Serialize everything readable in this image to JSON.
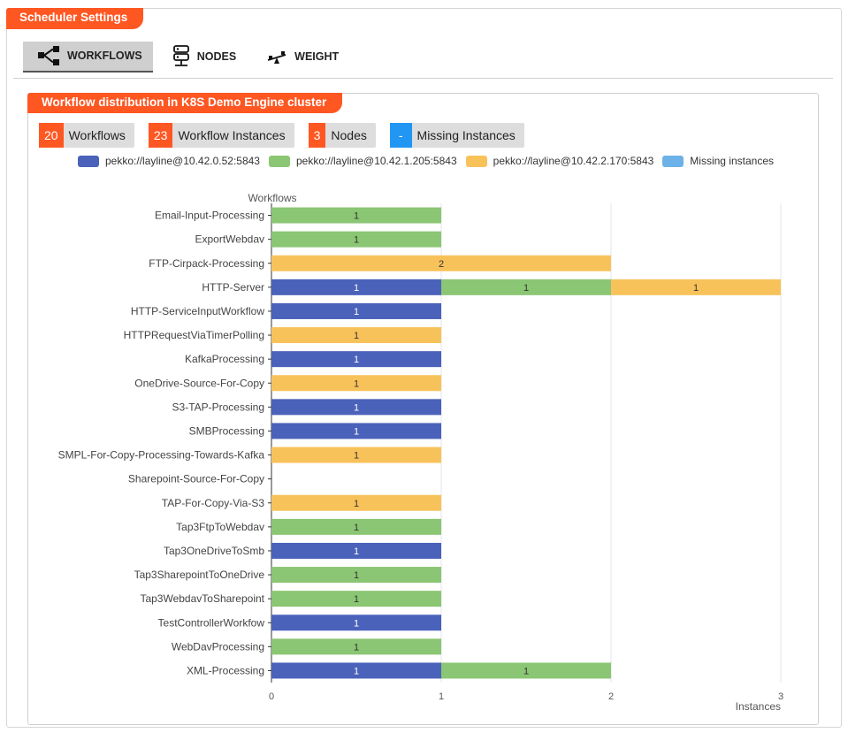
{
  "header": {
    "title": "Scheduler Settings"
  },
  "tabs": [
    {
      "label": "WORKFLOWS",
      "icon": "workflow-share-icon",
      "active": true
    },
    {
      "label": "NODES",
      "icon": "server-nodes-icon",
      "active": false
    },
    {
      "label": "WEIGHT",
      "icon": "weight-scale-icon",
      "active": false
    }
  ],
  "panel": {
    "title": "Workflow distribution in K8S Demo Engine cluster"
  },
  "stats": [
    {
      "value": "20",
      "label": "Workflows",
      "color": "#ff5722"
    },
    {
      "value": "23",
      "label": "Workflow Instances",
      "color": "#ff5722"
    },
    {
      "value": "3",
      "label": "Nodes",
      "color": "#ff5722"
    },
    {
      "value": "-",
      "label": "Missing Instances",
      "color": "#2196f3"
    }
  ],
  "legend": [
    {
      "label": "pekko://layline@10.42.0.52:5843",
      "color": "#4a62ba"
    },
    {
      "label": "pekko://layline@10.42.1.205:5843",
      "color": "#8ac673"
    },
    {
      "label": "pekko://layline@10.42.2.170:5843",
      "color": "#f8c25b"
    },
    {
      "label": "Missing instances",
      "color": "#6cb2e8"
    }
  ],
  "chart_data": {
    "type": "bar",
    "orientation": "horizontal",
    "stacked": true,
    "ylabel": "Workflows",
    "xlabel": "Instances",
    "xlim": [
      0,
      3
    ],
    "xticks": [
      0,
      1,
      2,
      3
    ],
    "grid": true,
    "categories": [
      "Email-Input-Processing",
      "ExportWebdav",
      "FTP-Cirpack-Processing",
      "HTTP-Server",
      "HTTP-ServiceInputWorkflow",
      "HTTPRequestViaTimerPolling",
      "KafkaProcessing",
      "OneDrive-Source-For-Copy",
      "S3-TAP-Processing",
      "SMBProcessing",
      "SMPL-For-Copy-Processing-Towards-Kafka",
      "Sharepoint-Source-For-Copy",
      "TAP-For-Copy-Via-S3",
      "Tap3FtpToWebdav",
      "Tap3OneDriveToSmb",
      "Tap3SharepointToOneDrive",
      "Tap3WebdavToSharepoint",
      "TestControllerWorkfow",
      "WebDavProcessing",
      "XML-Processing"
    ],
    "series": [
      {
        "name": "pekko://layline@10.42.0.52:5843",
        "color": "#4a62ba",
        "values": [
          0,
          0,
          0,
          1,
          1,
          0,
          1,
          0,
          1,
          1,
          0,
          0,
          0,
          0,
          1,
          0,
          0,
          1,
          0,
          1
        ]
      },
      {
        "name": "pekko://layline@10.42.1.205:5843",
        "color": "#8ac673",
        "values": [
          1,
          1,
          0,
          1,
          0,
          0,
          0,
          0,
          0,
          0,
          0,
          0,
          0,
          1,
          0,
          1,
          1,
          0,
          1,
          1
        ]
      },
      {
        "name": "pekko://layline@10.42.2.170:5843",
        "color": "#f8c25b",
        "values": [
          0,
          0,
          2,
          1,
          0,
          1,
          0,
          1,
          0,
          0,
          1,
          0,
          1,
          0,
          0,
          0,
          0,
          0,
          0,
          0
        ]
      },
      {
        "name": "Missing instances",
        "color": "#6cb2e8",
        "values": [
          0,
          0,
          0,
          0,
          0,
          0,
          0,
          0,
          0,
          0,
          0,
          0,
          0,
          0,
          0,
          0,
          0,
          0,
          0,
          0
        ]
      }
    ]
  }
}
